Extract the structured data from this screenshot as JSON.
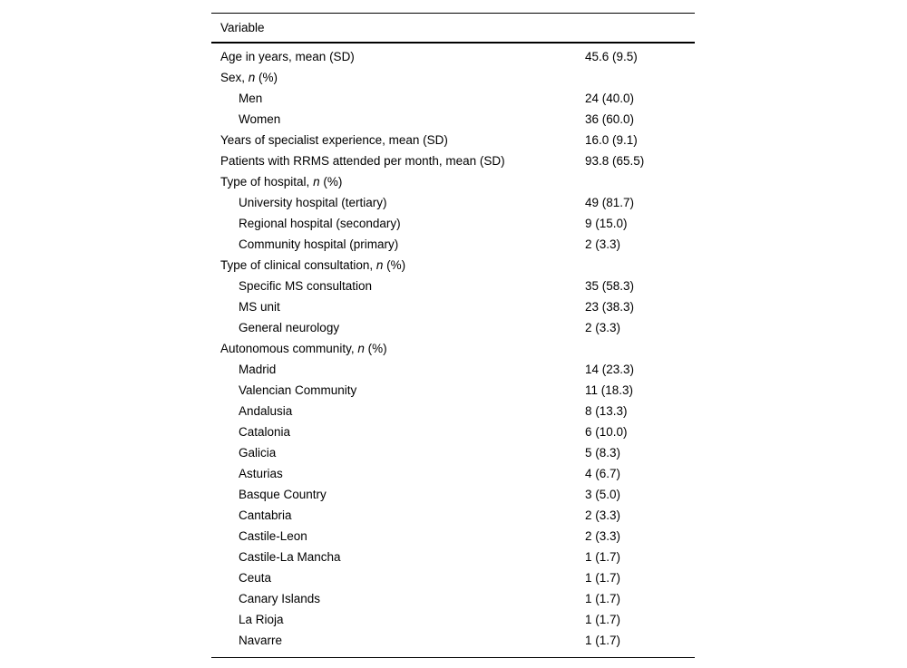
{
  "page": {
    "background": "#ffffff",
    "text_color": "#000000"
  },
  "table": {
    "header": "Variable",
    "rows": [
      {
        "indent": 0,
        "label": [
          {
            "t": "Age in years, mean (SD)"
          }
        ],
        "value": "45.6 (9.5)"
      },
      {
        "indent": 0,
        "label": [
          {
            "t": "Sex, "
          },
          {
            "t": "n",
            "i": true
          },
          {
            "t": " (%)"
          }
        ],
        "value": ""
      },
      {
        "indent": 1,
        "label": [
          {
            "t": "Men"
          }
        ],
        "value": "24 (40.0)"
      },
      {
        "indent": 1,
        "label": [
          {
            "t": "Women"
          }
        ],
        "value": "36 (60.0)"
      },
      {
        "indent": 0,
        "label": [
          {
            "t": "Years of specialist experience, mean (SD)"
          }
        ],
        "value": "16.0 (9.1)"
      },
      {
        "indent": 0,
        "label": [
          {
            "t": "Patients with RRMS attended per month, mean (SD)"
          }
        ],
        "value": "93.8 (65.5)"
      },
      {
        "indent": 0,
        "label": [
          {
            "t": "Type of hospital, "
          },
          {
            "t": "n",
            "i": true
          },
          {
            "t": " (%)"
          }
        ],
        "value": ""
      },
      {
        "indent": 1,
        "label": [
          {
            "t": "University hospital (tertiary)"
          }
        ],
        "value": "49 (81.7)"
      },
      {
        "indent": 1,
        "label": [
          {
            "t": "Regional hospital (secondary)"
          }
        ],
        "value": "9 (15.0)"
      },
      {
        "indent": 1,
        "label": [
          {
            "t": "Community hospital (primary)"
          }
        ],
        "value": "2 (3.3)"
      },
      {
        "indent": 0,
        "label": [
          {
            "t": "Type of clinical consultation, "
          },
          {
            "t": "n",
            "i": true
          },
          {
            "t": " (%)"
          }
        ],
        "value": ""
      },
      {
        "indent": 1,
        "label": [
          {
            "t": "Specific MS consultation"
          }
        ],
        "value": "35 (58.3)"
      },
      {
        "indent": 1,
        "label": [
          {
            "t": "MS unit"
          }
        ],
        "value": "23 (38.3)"
      },
      {
        "indent": 1,
        "label": [
          {
            "t": "General neurology"
          }
        ],
        "value": "2 (3.3)"
      },
      {
        "indent": 0,
        "label": [
          {
            "t": "Autonomous community, "
          },
          {
            "t": "n",
            "i": true
          },
          {
            "t": " (%)"
          }
        ],
        "value": ""
      },
      {
        "indent": 1,
        "label": [
          {
            "t": "Madrid"
          }
        ],
        "value": "14 (23.3)"
      },
      {
        "indent": 1,
        "label": [
          {
            "t": "Valencian Community"
          }
        ],
        "value": "11 (18.3)"
      },
      {
        "indent": 1,
        "label": [
          {
            "t": "Andalusia"
          }
        ],
        "value": "8 (13.3)"
      },
      {
        "indent": 1,
        "label": [
          {
            "t": "Catalonia"
          }
        ],
        "value": "6 (10.0)"
      },
      {
        "indent": 1,
        "label": [
          {
            "t": "Galicia"
          }
        ],
        "value": "5 (8.3)"
      },
      {
        "indent": 1,
        "label": [
          {
            "t": "Asturias"
          }
        ],
        "value": "4 (6.7)"
      },
      {
        "indent": 1,
        "label": [
          {
            "t": "Basque Country"
          }
        ],
        "value": "3 (5.0)"
      },
      {
        "indent": 1,
        "label": [
          {
            "t": "Cantabria"
          }
        ],
        "value": "2 (3.3)"
      },
      {
        "indent": 1,
        "label": [
          {
            "t": "Castile-Leon"
          }
        ],
        "value": "2 (3.3)"
      },
      {
        "indent": 1,
        "label": [
          {
            "t": "Castile-La Mancha"
          }
        ],
        "value": "1 (1.7)"
      },
      {
        "indent": 1,
        "label": [
          {
            "t": "Ceuta"
          }
        ],
        "value": "1 (1.7)"
      },
      {
        "indent": 1,
        "label": [
          {
            "t": "Canary Islands"
          }
        ],
        "value": "1 (1.7)"
      },
      {
        "indent": 1,
        "label": [
          {
            "t": "La Rioja"
          }
        ],
        "value": "1 (1.7)"
      },
      {
        "indent": 1,
        "label": [
          {
            "t": "Navarre"
          }
        ],
        "value": "1 (1.7)"
      }
    ]
  }
}
